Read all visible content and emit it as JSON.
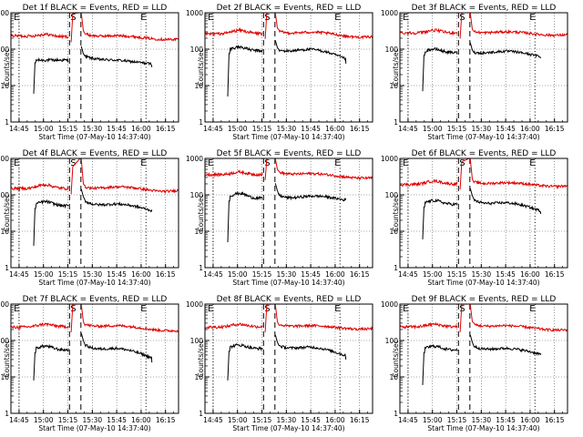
{
  "chart_data": [
    {
      "type": "line",
      "title": "Det 1f BLACK = Events, RED = LLD",
      "xlabel": "Start Time (07-May-10 14:37:40)",
      "ylabel": "Counts/sec",
      "yscale": "log",
      "ylim": [
        1,
        1000
      ],
      "xlim": [
        -5,
        98
      ],
      "x_tick_labels": [
        "14:45",
        "15:00",
        "15:15",
        "15:30",
        "15:45",
        "16:00",
        "16:15"
      ],
      "y_tick_labels": [
        "1",
        "10",
        "100",
        "1000"
      ],
      "markers": {
        "event_start": {
          "label": "E",
          "x": 0
        },
        "saa_start": {
          "label": "S",
          "x": 31
        },
        "event_end": {
          "label": "E",
          "x": 78
        }
      },
      "flare_dashed_lines": [
        31,
        38
      ],
      "series": [
        {
          "name": "Events",
          "color": "#000000",
          "level": 50,
          "rise": 75,
          "start": [
            9,
            6
          ],
          "end": [
            82,
            32
          ],
          "bump": 0
        },
        {
          "name": "LLD",
          "color": "#e00000",
          "level": 220,
          "rise": 320,
          "start": [
            -5,
            235
          ],
          "end": [
            98,
            175
          ],
          "bump": 35
        }
      ]
    },
    {
      "type": "line",
      "title": "Det 2f BLACK = Events, RED = LLD",
      "xlabel": "Start Time (07-May-10 14:37:40)",
      "ylabel": "Counts/sec",
      "yscale": "log",
      "ylim": [
        1,
        1000
      ],
      "xlim": [
        -5,
        98
      ],
      "x_tick_labels": [
        "14:45",
        "15:00",
        "15:15",
        "15:30",
        "15:45",
        "16:00",
        "16:15"
      ],
      "y_tick_labels": [
        "1",
        "10",
        "100",
        "1000"
      ],
      "markers": {
        "event_start": {
          "label": "E",
          "x": 0
        },
        "saa_start": {
          "label": "S",
          "x": 31
        },
        "event_end": {
          "label": "E",
          "x": 78
        }
      },
      "flare_dashed_lines": [
        31,
        38
      ],
      "series": [
        {
          "name": "Events",
          "color": "#000000",
          "level": 90,
          "rise": 110,
          "start": [
            9,
            5
          ],
          "end": [
            82,
            40
          ],
          "bump": 25
        },
        {
          "name": "LLD",
          "color": "#e00000",
          "level": 270,
          "rise": 380,
          "start": [
            -5,
            260
          ],
          "end": [
            98,
            200
          ],
          "bump": 60
        }
      ]
    },
    {
      "type": "line",
      "title": "Det 3f BLACK = Events, RED = LLD",
      "xlabel": "Start Time (07-May-10 14:37:40)",
      "ylabel": "Counts/sec",
      "yscale": "log",
      "ylim": [
        1,
        1000
      ],
      "xlim": [
        -5,
        98
      ],
      "x_tick_labels": [
        "14:45",
        "15:00",
        "15:15",
        "15:30",
        "15:45",
        "16:00",
        "16:15"
      ],
      "y_tick_labels": [
        "1",
        "10",
        "100",
        "1000"
      ],
      "markers": {
        "event_start": {
          "label": "E",
          "x": 0
        },
        "saa_start": {
          "label": "S",
          "x": 31
        },
        "event_end": {
          "label": "E",
          "x": 78
        }
      },
      "flare_dashed_lines": [
        31,
        38
      ],
      "series": [
        {
          "name": "Events",
          "color": "#000000",
          "level": 80,
          "rise": 95,
          "start": [
            9,
            7
          ],
          "end": [
            82,
            60
          ],
          "bump": 20
        },
        {
          "name": "LLD",
          "color": "#e00000",
          "level": 280,
          "rise": 350,
          "start": [
            -5,
            280
          ],
          "end": [
            98,
            240
          ],
          "bump": 50
        }
      ]
    },
    {
      "type": "line",
      "title": "Det 4f BLACK = Events, RED = LLD",
      "xlabel": "Start Time (07-May-10 14:37:40)",
      "ylabel": "Counts/sec",
      "yscale": "log",
      "ylim": [
        1,
        1000
      ],
      "xlim": [
        -5,
        98
      ],
      "x_tick_labels": [
        "14:45",
        "15:00",
        "15:15",
        "15:30",
        "15:45",
        "16:00",
        "16:15"
      ],
      "y_tick_labels": [
        "1",
        "10",
        "100",
        "1000"
      ],
      "markers": {
        "event_start": {
          "label": "E",
          "x": 0
        },
        "saa_start": {
          "label": "S",
          "x": 31
        },
        "event_end": {
          "label": "E",
          "x": 78
        }
      },
      "flare_dashed_lines": [
        31,
        38
      ],
      "series": [
        {
          "name": "Events",
          "color": "#000000",
          "level": 50,
          "rise": 90,
          "start": [
            9,
            4
          ],
          "end": [
            82,
            35
          ],
          "bump": 15
        },
        {
          "name": "LLD",
          "color": "#e00000",
          "level": 150,
          "rise": 200,
          "start": [
            -5,
            150
          ],
          "end": [
            98,
            130
          ],
          "bump": 40
        }
      ]
    },
    {
      "type": "line",
      "title": "Det 5f BLACK = Events, RED = LLD",
      "xlabel": "Start Time (07-May-10 14:37:40)",
      "ylabel": "Counts/sec",
      "yscale": "log",
      "ylim": [
        1,
        1000
      ],
      "xlim": [
        -5,
        98
      ],
      "x_tick_labels": [
        "14:45",
        "15:00",
        "15:15",
        "15:30",
        "15:45",
        "16:00",
        "16:15"
      ],
      "y_tick_labels": [
        "1",
        "10",
        "100",
        "1000"
      ],
      "markers": {
        "event_start": {
          "label": "E",
          "x": 0
        },
        "saa_start": {
          "label": "S",
          "x": 31
        },
        "event_end": {
          "label": "E",
          "x": 78
        }
      },
      "flare_dashed_lines": [
        31,
        38
      ],
      "series": [
        {
          "name": "Events",
          "color": "#000000",
          "level": 80,
          "rise": 130,
          "start": [
            9,
            5
          ],
          "end": [
            82,
            80
          ],
          "bump": 30
        },
        {
          "name": "LLD",
          "color": "#e00000",
          "level": 360,
          "rise": 500,
          "start": [
            -5,
            360
          ],
          "end": [
            98,
            260
          ],
          "bump": 60
        }
      ]
    },
    {
      "type": "line",
      "title": "Det 6f BLACK = Events, RED = LLD",
      "xlabel": "Start Time (07-May-10 14:37:40)",
      "ylabel": "Counts/sec",
      "yscale": "log",
      "ylim": [
        1,
        1000
      ],
      "xlim": [
        -5,
        98
      ],
      "x_tick_labels": [
        "14:45",
        "15:00",
        "15:15",
        "15:30",
        "15:45",
        "16:00",
        "16:15"
      ],
      "y_tick_labels": [
        "1",
        "10",
        "100",
        "1000"
      ],
      "markers": {
        "event_start": {
          "label": "E",
          "x": 0
        },
        "saa_start": {
          "label": "S",
          "x": 31
        },
        "event_end": {
          "label": "E",
          "x": 78
        }
      },
      "flare_dashed_lines": [
        31,
        38
      ],
      "series": [
        {
          "name": "Events",
          "color": "#000000",
          "level": 55,
          "rise": 95,
          "start": [
            9,
            6
          ],
          "end": [
            82,
            30
          ],
          "bump": 15
        },
        {
          "name": "LLD",
          "color": "#e00000",
          "level": 200,
          "rise": 270,
          "start": [
            -5,
            190
          ],
          "end": [
            98,
            170
          ],
          "bump": 40
        }
      ]
    },
    {
      "type": "line",
      "title": "Det 7f BLACK = Events, RED = LLD",
      "xlabel": "Start Time (07-May-10 14:37:40)",
      "ylabel": "Counts/sec",
      "yscale": "log",
      "ylim": [
        1,
        1000
      ],
      "xlim": [
        -5,
        98
      ],
      "x_tick_labels": [
        "14:45",
        "15:00",
        "15:15",
        "15:30",
        "15:45",
        "16:00",
        "16:15"
      ],
      "y_tick_labels": [
        "1",
        "10",
        "100",
        "1000"
      ],
      "markers": {
        "event_start": {
          "label": "E",
          "x": 0
        },
        "saa_start": {
          "label": "S",
          "x": 31
        },
        "event_end": {
          "label": "E",
          "x": 78
        }
      },
      "flare_dashed_lines": [
        31,
        38
      ],
      "series": [
        {
          "name": "Events",
          "color": "#000000",
          "level": 55,
          "rise": 100,
          "start": [
            9,
            8
          ],
          "end": [
            82,
            25
          ],
          "bump": 15
        },
        {
          "name": "LLD",
          "color": "#e00000",
          "level": 240,
          "rise": 330,
          "start": [
            -5,
            230
          ],
          "end": [
            98,
            160
          ],
          "bump": 40
        }
      ]
    },
    {
      "type": "line",
      "title": "Det 8f BLACK = Events, RED = LLD",
      "xlabel": "Start Time (07-May-10 14:37:40)",
      "ylabel": "Counts/sec",
      "yscale": "log",
      "ylim": [
        1,
        1000
      ],
      "xlim": [
        -5,
        98
      ],
      "x_tick_labels": [
        "14:45",
        "15:00",
        "15:15",
        "15:30",
        "15:45",
        "16:00",
        "16:15"
      ],
      "y_tick_labels": [
        "1",
        "10",
        "100",
        "1000"
      ],
      "markers": {
        "event_start": {
          "label": "E",
          "x": 0
        },
        "saa_start": {
          "label": "S",
          "x": 31
        },
        "event_end": {
          "label": "E",
          "x": 78
        }
      },
      "flare_dashed_lines": [
        31,
        38
      ],
      "series": [
        {
          "name": "Events",
          "color": "#000000",
          "level": 60,
          "rise": 90,
          "start": [
            9,
            8
          ],
          "end": [
            82,
            30
          ],
          "bump": 15
        },
        {
          "name": "LLD",
          "color": "#e00000",
          "level": 240,
          "rise": 330,
          "start": [
            -5,
            230
          ],
          "end": [
            98,
            200
          ],
          "bump": 40
        }
      ]
    },
    {
      "type": "line",
      "title": "Det 9f BLACK = Events, RED = LLD",
      "xlabel": "Start Time (07-May-10 14:37:40)",
      "ylabel": "Counts/sec",
      "yscale": "log",
      "ylim": [
        1,
        1000
      ],
      "xlim": [
        -5,
        98
      ],
      "x_tick_labels": [
        "14:45",
        "15:00",
        "15:15",
        "15:30",
        "15:45",
        "16:00",
        "16:15"
      ],
      "y_tick_labels": [
        "1",
        "10",
        "100",
        "1000"
      ],
      "markers": {
        "event_start": {
          "label": "E",
          "x": 0
        },
        "saa_start": {
          "label": "S",
          "x": 31
        },
        "event_end": {
          "label": "E",
          "x": 78
        }
      },
      "flare_dashed_lines": [
        31,
        38
      ],
      "series": [
        {
          "name": "Events",
          "color": "#000000",
          "level": 55,
          "rise": 90,
          "start": [
            9,
            6
          ],
          "end": [
            82,
            40
          ],
          "bump": 15
        },
        {
          "name": "LLD",
          "color": "#e00000",
          "level": 240,
          "rise": 330,
          "start": [
            -5,
            235
          ],
          "end": [
            98,
            175
          ],
          "bump": 40
        }
      ]
    }
  ]
}
